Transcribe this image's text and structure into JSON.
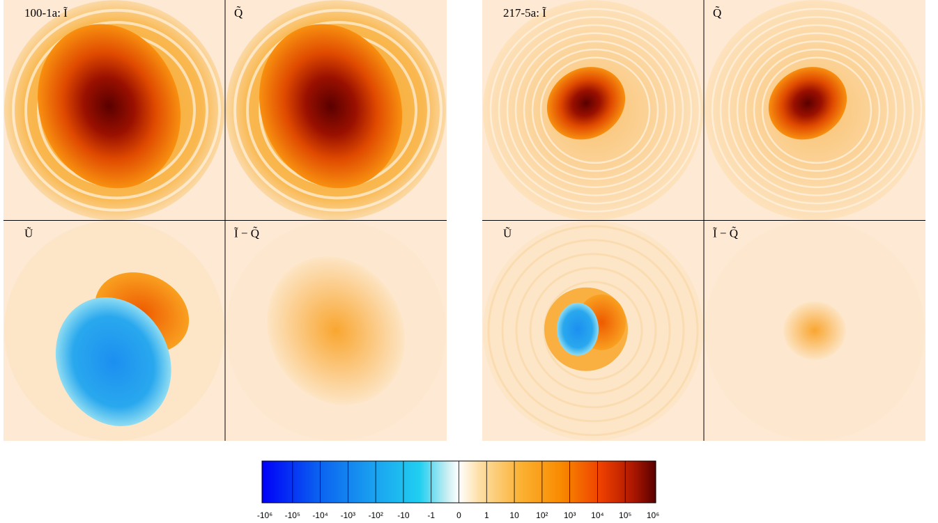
{
  "groups": [
    {
      "panels": [
        {
          "label": "100-1a: Ĩ"
        },
        {
          "label": "Q̃"
        },
        {
          "label": "Ũ"
        },
        {
          "label": "Ĩ − Q̃"
        }
      ]
    },
    {
      "panels": [
        {
          "label": "217-5a: Ĩ"
        },
        {
          "label": "Q̃"
        },
        {
          "label": "Ũ"
        },
        {
          "label": "Ĩ − Q̃"
        }
      ]
    }
  ],
  "colorbar": {
    "ticks": [
      "-10⁶",
      "-10⁵",
      "-10⁴",
      "-10³",
      "-10²",
      "-10",
      "-1",
      "0",
      "1",
      "10",
      "10²",
      "10³",
      "10⁴",
      "10⁵",
      "10⁶"
    ]
  }
}
